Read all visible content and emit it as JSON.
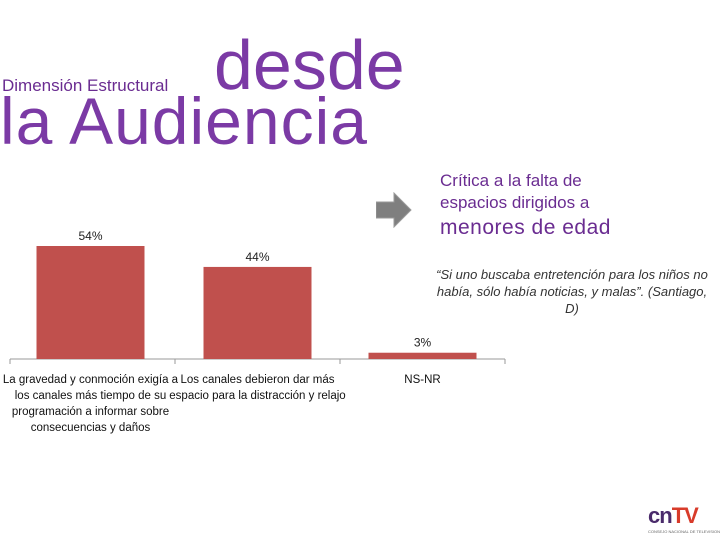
{
  "title": {
    "small": "Dimensión Estructural",
    "desde": "desde",
    "audiencia": "la Audiencia"
  },
  "side": {
    "line1": "Crítica a la falta de",
    "line2": "espacios dirigidos a",
    "line3": "menores de edad",
    "quote": "“Si uno buscaba  entretención para los niños no había, sólo había noticias, y malas”. (Santiago, D)"
  },
  "colors": {
    "bar": "#c0504d",
    "title": "#7b3aa5",
    "arrow": "#7f7f7f"
  },
  "chart_data": {
    "type": "bar",
    "categories": [
      [
        "La gravedad y conmoción exigía a",
        "los canales más tiempo de su",
        "programación a informar sobre",
        "consecuencias y daños"
      ],
      [
        "Los canales debieron dar más",
        "espacio para la distracción y relajo"
      ],
      [
        "NS-NR"
      ]
    ],
    "values": [
      54,
      44,
      3
    ],
    "labels": [
      "54%",
      "44%",
      "3%"
    ],
    "ylim": [
      0,
      54
    ],
    "title": "",
    "xlabel": "",
    "ylabel": ""
  },
  "logo": {
    "cn": "cn",
    "tv": "TV",
    "sub": "CONSEJO NACIONAL DE TELEVISION"
  }
}
